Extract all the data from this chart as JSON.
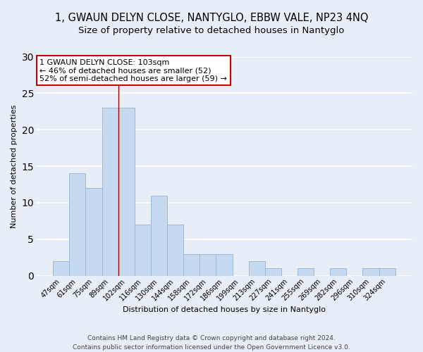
{
  "title": "1, GWAUN DELYN CLOSE, NANTYGLO, EBBW VALE, NP23 4NQ",
  "subtitle": "Size of property relative to detached houses in Nantyglo",
  "xlabel": "Distribution of detached houses by size in Nantyglo",
  "ylabel": "Number of detached properties",
  "bin_labels": [
    "47sqm",
    "61sqm",
    "75sqm",
    "89sqm",
    "102sqm",
    "116sqm",
    "130sqm",
    "144sqm",
    "158sqm",
    "172sqm",
    "186sqm",
    "199sqm",
    "213sqm",
    "227sqm",
    "241sqm",
    "255sqm",
    "269sqm",
    "282sqm",
    "296sqm",
    "310sqm",
    "324sqm"
  ],
  "bar_values": [
    2,
    14,
    12,
    23,
    23,
    7,
    11,
    7,
    3,
    3,
    3,
    0,
    2,
    1,
    0,
    1,
    0,
    1,
    0,
    1,
    1
  ],
  "bar_color": "#c5d9f0",
  "bar_edge_color": "#a0b8d8",
  "marker_line_color": "#aa0000",
  "marker_bin_index": 4,
  "ylim": [
    0,
    30
  ],
  "yticks": [
    0,
    5,
    10,
    15,
    20,
    25,
    30
  ],
  "annotation_text": "1 GWAUN DELYN CLOSE: 103sqm\n← 46% of detached houses are smaller (52)\n52% of semi-detached houses are larger (59) →",
  "annotation_box_facecolor": "#ffffff",
  "annotation_box_edgecolor": "#cc0000",
  "footer_line1": "Contains HM Land Registry data © Crown copyright and database right 2024.",
  "footer_line2": "Contains public sector information licensed under the Open Government Licence v3.0.",
  "background_color": "#e8eef8",
  "grid_color": "#ffffff",
  "title_fontsize": 10.5,
  "subtitle_fontsize": 9.5,
  "annotation_fontsize": 8,
  "axis_fontsize": 8,
  "tick_fontsize": 7,
  "footer_fontsize": 6.5
}
